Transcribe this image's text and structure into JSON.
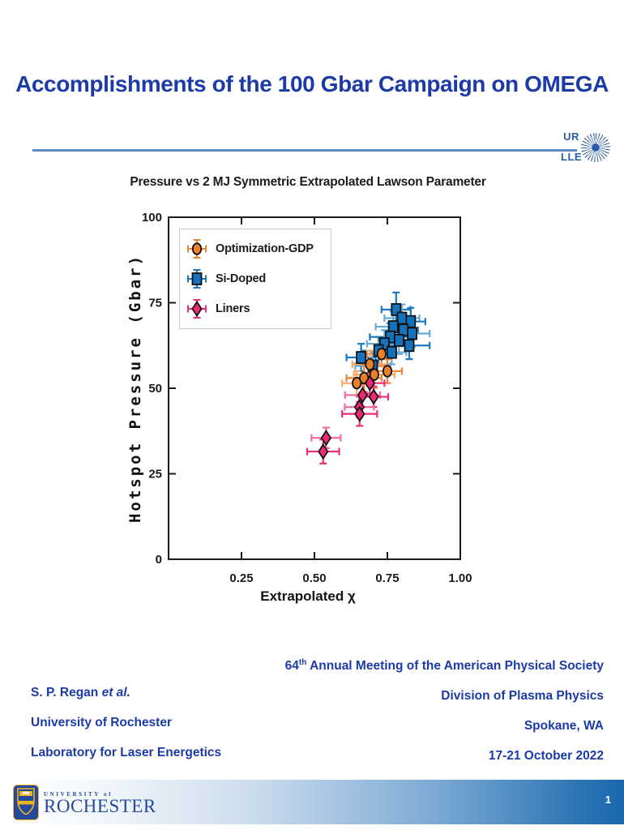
{
  "slide": {
    "title": "Accomplishments of the 100 Gbar Campaign on OMEGA",
    "page_number": "1"
  },
  "logo": {
    "line1": "UR",
    "line2": "LLE"
  },
  "university_logo": {
    "small_text": "UNIVERSITY of",
    "name": "ROCHESTER"
  },
  "footer": {
    "credit": {
      "author_name": "S. P. Regan ",
      "author_etal": "et al.",
      "line2": "University of Rochester",
      "line3": "Laboratory for Laser Energetics"
    },
    "meeting": {
      "num": "64",
      "sup": "th",
      "rest": " Annual Meeting of the American Physical Society",
      "line2": "Division of Plasma Physics",
      "line3": "Spokane, WA",
      "line4": "17-21 October 2022"
    }
  },
  "chart_data": {
    "type": "scatter",
    "title": "Pressure vs 2 MJ Symmetric Extrapolated Lawson Parameter",
    "xlabel": "Extrapolated χ",
    "ylabel": "Hotspot Pressure (Gbar)",
    "xlim": [
      0,
      1.0
    ],
    "ylim": [
      0,
      100
    ],
    "xticks": [
      0.25,
      0.5,
      0.75,
      1.0
    ],
    "xtick_labels": [
      "0.25",
      "0.50",
      "0.75",
      "1.00"
    ],
    "yticks": [
      0,
      25,
      50,
      75,
      100
    ],
    "ytick_labels": [
      "0",
      "25",
      "50",
      "75",
      "100"
    ],
    "grid": false,
    "legend_position": "upper left",
    "series": [
      {
        "name": "Optimization-GDP",
        "marker": "circle",
        "color": "#E8802C",
        "edge_color": "#121212",
        "err_colors": [
          "#EF8435",
          "#F5A869"
        ],
        "points": [
          {
            "x": 0.73,
            "y": 60.0,
            "xerr": 0.05,
            "yerr": 3.5
          },
          {
            "x": 0.69,
            "y": 57.0,
            "xerr": 0.06,
            "yerr": 4.0
          },
          {
            "x": 0.75,
            "y": 55.0,
            "xerr": 0.05,
            "yerr": 3.5
          },
          {
            "x": 0.705,
            "y": 54.0,
            "xerr": 0.07,
            "yerr": 4.0
          },
          {
            "x": 0.67,
            "y": 53.0,
            "xerr": 0.06,
            "yerr": 4.0
          },
          {
            "x": 0.645,
            "y": 51.5,
            "xerr": 0.05,
            "yerr": 3.5
          }
        ]
      },
      {
        "name": "Si-Doped",
        "marker": "square",
        "color": "#1573BE",
        "edge_color": "#121212",
        "err_colors": [
          "#1B78BE",
          "#68A9D8"
        ],
        "points": [
          {
            "x": 0.78,
            "y": 73.0,
            "xerr": 0.05,
            "yerr": 5.0
          },
          {
            "x": 0.8,
            "y": 70.5,
            "xerr": 0.06,
            "yerr": 4.0
          },
          {
            "x": 0.83,
            "y": 69.5,
            "xerr": 0.05,
            "yerr": 4.0
          },
          {
            "x": 0.77,
            "y": 68.0,
            "xerr": 0.06,
            "yerr": 4.5
          },
          {
            "x": 0.805,
            "y": 67.0,
            "xerr": 0.05,
            "yerr": 4.0
          },
          {
            "x": 0.835,
            "y": 66.0,
            "xerr": 0.06,
            "yerr": 4.0
          },
          {
            "x": 0.76,
            "y": 65.0,
            "xerr": 0.07,
            "yerr": 4.0
          },
          {
            "x": 0.79,
            "y": 64.0,
            "xerr": 0.05,
            "yerr": 4.0
          },
          {
            "x": 0.825,
            "y": 62.5,
            "xerr": 0.07,
            "yerr": 4.0
          },
          {
            "x": 0.74,
            "y": 63.0,
            "xerr": 0.06,
            "yerr": 4.0
          },
          {
            "x": 0.72,
            "y": 61.0,
            "xerr": 0.06,
            "yerr": 4.0
          },
          {
            "x": 0.765,
            "y": 60.5,
            "xerr": 0.05,
            "yerr": 3.5
          },
          {
            "x": 0.66,
            "y": 59.0,
            "xerr": 0.05,
            "yerr": 4.0
          },
          {
            "x": 0.7,
            "y": 56.5,
            "xerr": 0.06,
            "yerr": 4.0
          }
        ]
      },
      {
        "name": "Liners",
        "marker": "diamond",
        "color": "#EE2A77",
        "edge_color": "#121212",
        "err_colors": [
          "#ED2D77",
          "#F4679F"
        ],
        "points": [
          {
            "x": 0.69,
            "y": 51.5,
            "xerr": 0.05,
            "yerr": 3.0
          },
          {
            "x": 0.665,
            "y": 48.0,
            "xerr": 0.06,
            "yerr": 3.5
          },
          {
            "x": 0.703,
            "y": 47.5,
            "xerr": 0.05,
            "yerr": 3.0
          },
          {
            "x": 0.654,
            "y": 44.5,
            "xerr": 0.05,
            "yerr": 3.0
          },
          {
            "x": 0.655,
            "y": 42.5,
            "xerr": 0.06,
            "yerr": 3.5
          },
          {
            "x": 0.54,
            "y": 35.5,
            "xerr": 0.05,
            "yerr": 3.0
          },
          {
            "x": 0.53,
            "y": 31.5,
            "xerr": 0.055,
            "yerr": 3.5
          }
        ]
      }
    ]
  }
}
